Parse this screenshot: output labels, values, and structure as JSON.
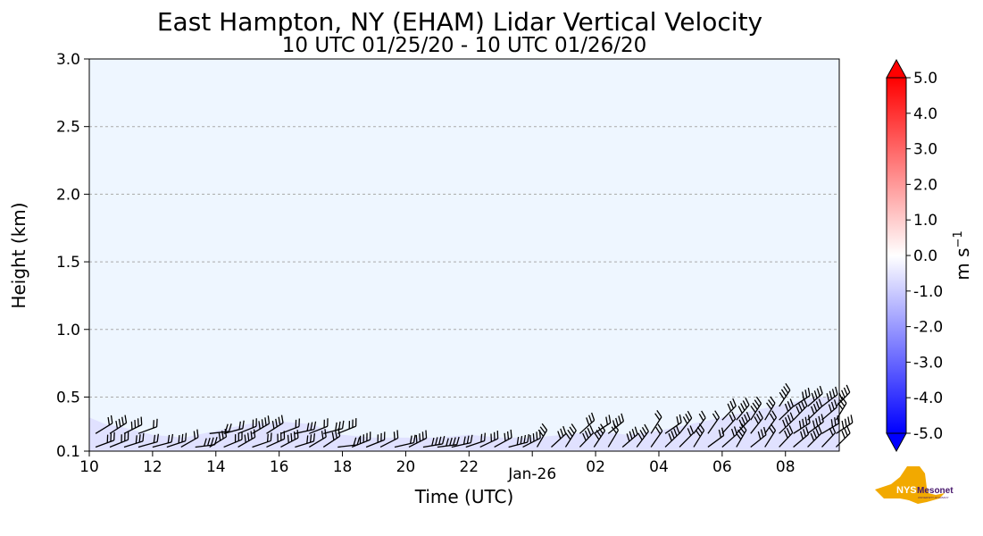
{
  "chart_data": {
    "type": "heatmap",
    "title": "East Hampton, NY (EHAM) Lidar Vertical Velocity",
    "subtitle": "10 UTC 01/25/20 - 10 UTC 01/26/20",
    "xlabel": "Time (UTC)",
    "ylabel": "Height (km)",
    "xlim": [
      0,
      23.7
    ],
    "ylim": [
      0.1,
      3.0
    ],
    "x_ticks": [
      {
        "value": 0,
        "label": "10"
      },
      {
        "value": 2,
        "label": "12"
      },
      {
        "value": 4,
        "label": "14"
      },
      {
        "value": 6,
        "label": "16"
      },
      {
        "value": 8,
        "label": "18"
      },
      {
        "value": 10,
        "label": "20"
      },
      {
        "value": 12,
        "label": "22"
      },
      {
        "value": 14,
        "label": "Jan-26"
      },
      {
        "value": 16,
        "label": "02"
      },
      {
        "value": 18,
        "label": "04"
      },
      {
        "value": 20,
        "label": "06"
      },
      {
        "value": 22,
        "label": "08"
      }
    ],
    "y_ticks": [
      {
        "value": 0.1,
        "label": "0.1"
      },
      {
        "value": 0.5,
        "label": "0.5"
      },
      {
        "value": 1.0,
        "label": "1.0"
      },
      {
        "value": 1.5,
        "label": "1.5"
      },
      {
        "value": 2.0,
        "label": "2.0"
      },
      {
        "value": 2.5,
        "label": "2.5"
      },
      {
        "value": 3.0,
        "label": "3.0"
      }
    ],
    "horizontal_grid": true,
    "background_color": "#eef6ff",
    "shading_color": "#dcdcff",
    "data_top_height_km": [
      [
        0,
        0.35
      ],
      [
        0.5,
        0.3
      ],
      [
        1,
        0.28
      ],
      [
        2,
        0.22
      ],
      [
        3,
        0.2
      ],
      [
        4,
        0.25
      ],
      [
        5,
        0.3
      ],
      [
        6,
        0.32
      ],
      [
        7,
        0.3
      ],
      [
        8,
        0.22
      ],
      [
        9,
        0.2
      ],
      [
        10,
        0.2
      ],
      [
        11,
        0.2
      ],
      [
        12,
        0.22
      ],
      [
        13,
        0.2
      ],
      [
        14,
        0.2
      ],
      [
        15,
        0.22
      ],
      [
        16,
        0.25
      ],
      [
        17,
        0.22
      ],
      [
        18,
        0.25
      ],
      [
        19,
        0.3
      ],
      [
        20,
        0.35
      ],
      [
        21,
        0.4
      ],
      [
        22,
        0.45
      ],
      [
        23,
        0.5
      ],
      [
        23.7,
        0.5
      ]
    ],
    "colorbar": {
      "label": "m s",
      "label_superscript": "−1",
      "min": -5.0,
      "max": 5.0,
      "extend": "both",
      "min_color": "#0000ff",
      "mid_color": "#ffffff",
      "max_color": "#ff0000",
      "tick_values": [
        5.0,
        4.0,
        3.0,
        2.0,
        1.0,
        0.0,
        -1.0,
        -2.0,
        -3.0,
        -4.0,
        -5.0
      ],
      "tick_labels": [
        "5.0",
        "4.0",
        "3.0",
        "2.0",
        "1.0",
        "0.0",
        "-1.0",
        "-2.0",
        "-3.0",
        "-4.0",
        "-5.0"
      ]
    }
  },
  "logo": {
    "text": "NYS",
    "text2": "Mesonet",
    "sub": "UNIVERSITY AT ALBANY",
    "state_color": "#f2a900",
    "text_color": "#46166b"
  }
}
